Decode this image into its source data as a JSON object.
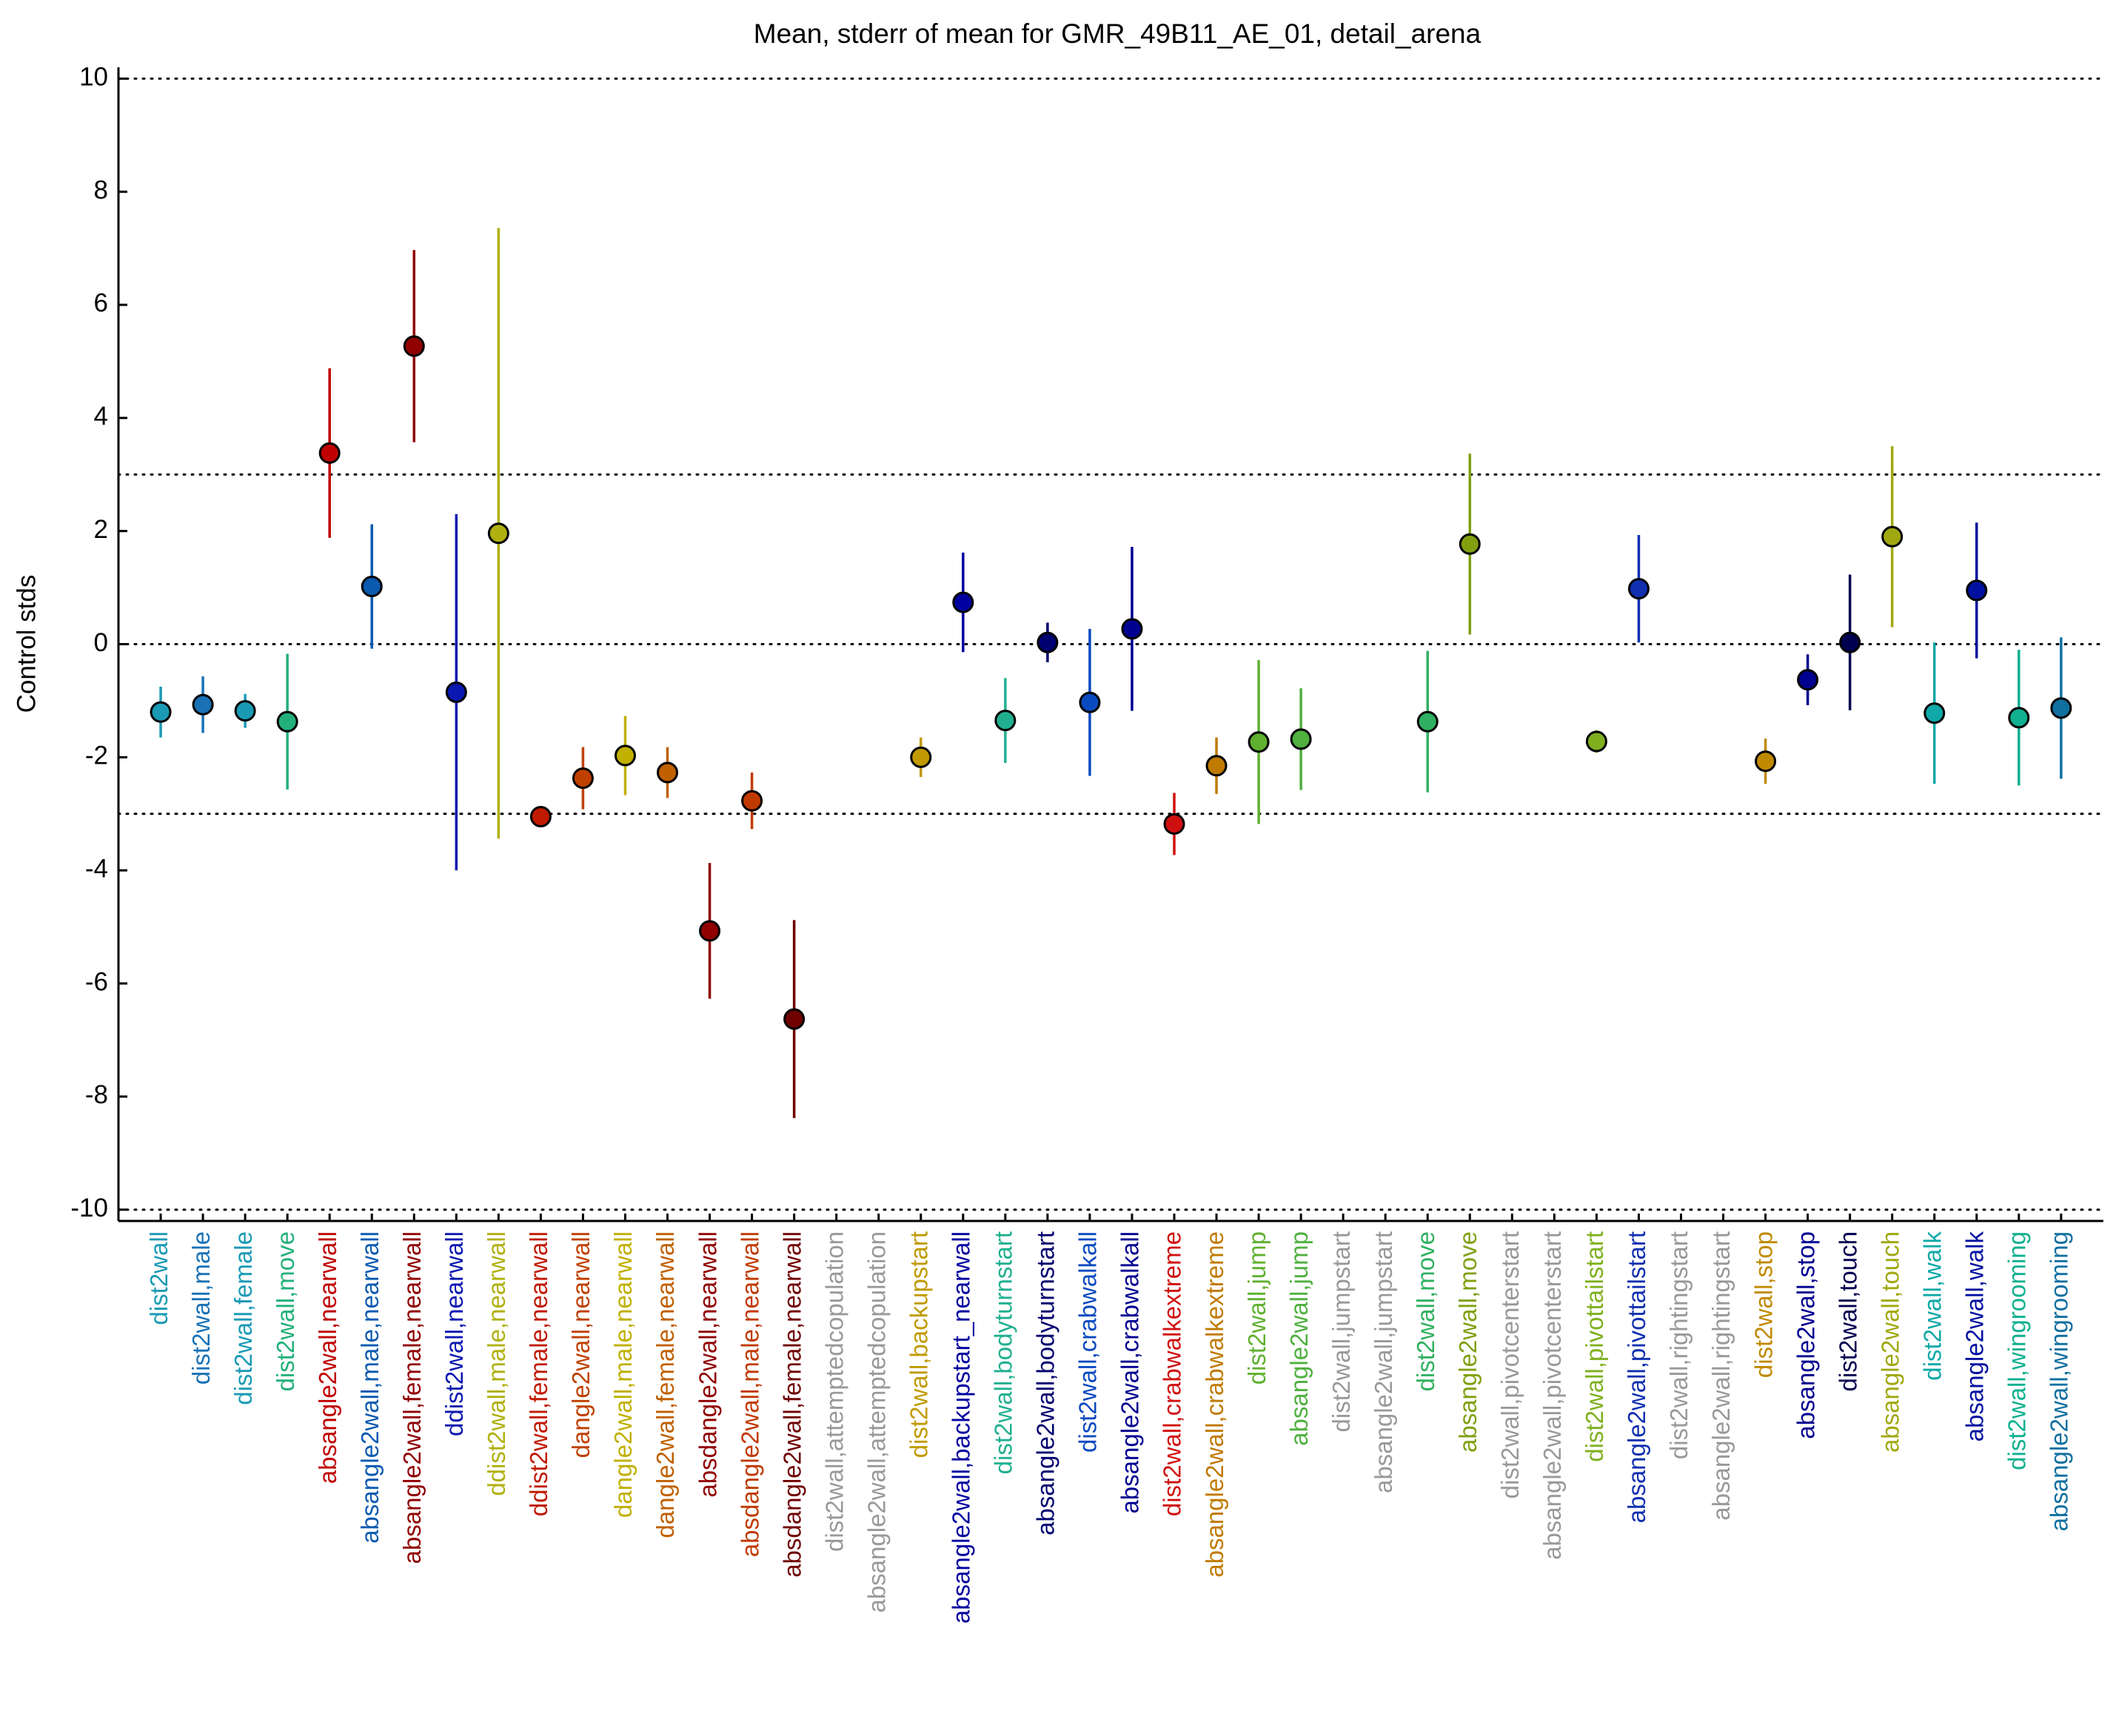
{
  "chart_data": {
    "type": "errorbar",
    "title": "Mean, stderr of mean for GMR_49B11_AE_01, detail_arena",
    "y_label": "Control stds",
    "categories": [
      "dist2wall",
      "dist2wall,male",
      "dist2wall,female",
      "dist2wall,move",
      "absangle2wall,nearwall",
      "absangle2wall,male,nearwall",
      "absangle2wall,female,nearwall",
      "ddist2wall,nearwall",
      "ddist2wall,male,nearwall",
      "ddist2wall,female,nearwall",
      "dangle2wall,nearwall",
      "dangle2wall,male,nearwall",
      "dangle2wall,female,nearwall",
      "absdangle2wall,nearwall",
      "absdangle2wall,male,nearwall",
      "absdangle2wall,female,nearwall",
      "dist2wall,attemptedcopulation",
      "absangle2wall,attemptedcopulation",
      "dist2wall,backupstart",
      "absangle2wall,backupstart_nearwall",
      "dist2wall,bodyturnstart",
      "absangle2wall,bodyturnstart",
      "dist2wall,crabwalkall",
      "absangle2wall,crabwalkall",
      "dist2wall,crabwalkextreme",
      "absangle2wall,crabwalkextreme",
      "dist2wall,jump",
      "absangle2wall,jump",
      "dist2wall,jumpstart",
      "absangle2wall,jumpstart",
      "dist2wall,move",
      "absangle2wall,move",
      "dist2wall,pivotcenterstart",
      "absangle2wall,pivotcenterstart",
      "dist2wall,pivottailstart",
      "absangle2wall,pivottailstart",
      "dist2wall,rightingstart",
      "absangle2wall,rightingstart",
      "dist2wall,stop",
      "absangle2wall,stop",
      "dist2wall,touch",
      "absangle2wall,touch",
      "dist2wall,walk",
      "absangle2wall,walk",
      "dist2wall,wingrooming",
      "absangle2wall,wingrooming"
    ],
    "values": [
      -1.2,
      -1.07,
      -1.18,
      -1.37,
      3.38,
      1.02,
      5.27,
      -0.85,
      1.96,
      -3.05,
      -2.37,
      -1.97,
      -2.27,
      -5.07,
      -2.77,
      -6.63,
      null,
      null,
      -2.0,
      0.74,
      -1.35,
      0.03,
      -1.03,
      0.27,
      -3.18,
      -2.15,
      -1.73,
      -1.68,
      null,
      null,
      -1.37,
      1.77,
      null,
      null,
      -1.72,
      0.98,
      null,
      null,
      -2.07,
      -0.63,
      0.03,
      1.9,
      -1.22,
      0.95,
      -1.3,
      -1.13
    ],
    "errors": [
      0.45,
      0.5,
      0.3,
      1.2,
      1.5,
      1.1,
      1.7,
      3.15,
      5.4,
      0.1,
      0.55,
      0.7,
      0.45,
      1.2,
      0.5,
      1.75,
      null,
      null,
      0.35,
      0.88,
      0.75,
      0.35,
      1.3,
      1.45,
      0.55,
      0.5,
      1.45,
      0.9,
      null,
      null,
      1.25,
      1.6,
      null,
      null,
      0.2,
      0.95,
      null,
      null,
      0.4,
      0.45,
      1.2,
      1.6,
      1.25,
      1.2,
      1.2,
      1.25
    ],
    "colors": [
      "#1a9ab5",
      "#1a72b5",
      "#1a9ab5",
      "#22b07a",
      "#c00000",
      "#0a5ab0",
      "#900000",
      "#0a18b0",
      "#b0b010",
      "#c01a00",
      "#c04000",
      "#c0b000",
      "#c06000",
      "#900000",
      "#c03a00",
      "#700000",
      "#999999",
      "#999999",
      "#c09a00",
      "#0000a0",
      "#20b090",
      "#000070",
      "#0a4ac0",
      "#000090",
      "#d01010",
      "#c07a00",
      "#60b030",
      "#50b040",
      "#999999",
      "#999999",
      "#30b060",
      "#80a010",
      "#999999",
      "#999999",
      "#80b020",
      "#1030b0",
      "#999999",
      "#999999",
      "#c08a00",
      "#000090",
      "#000050",
      "#a0a810",
      "#10a8a8",
      "#0010a0",
      "#10b090",
      "#1070a0"
    ],
    "ylim": [
      -10.2,
      10.2
    ],
    "yticks": [
      -10,
      -8,
      -6,
      -4,
      -2,
      0,
      2,
      4,
      6,
      8,
      10
    ],
    "hlines": [
      -10,
      -3,
      0,
      3,
      10
    ]
  }
}
